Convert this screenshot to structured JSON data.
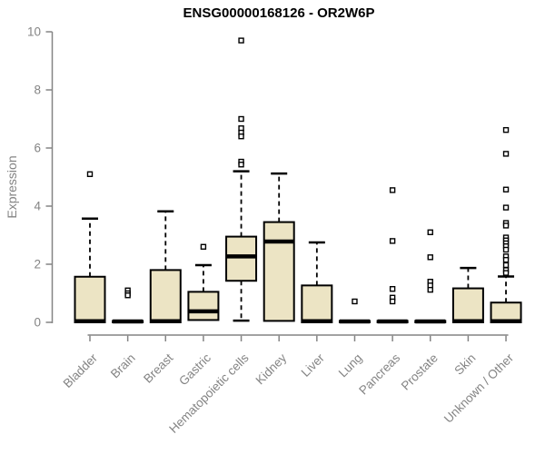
{
  "title": "ENSG00000168126 - OR2W6P",
  "chart_data": {
    "type": "boxplot",
    "title": "ENSG00000168126 - OR2W6P",
    "xlabel": "",
    "ylabel": "Expression",
    "ylim": [
      0,
      10
    ],
    "yticks": [
      0,
      2,
      4,
      6,
      8,
      10
    ],
    "grid": false,
    "legend": false,
    "style": {
      "box_fill": "#ece4c4",
      "box_border": "#000000",
      "median_color": "#000000",
      "whisker_color": "#000000",
      "whisker_style": "dashed",
      "outlier_marker": "open-square",
      "axis_color": "#848484",
      "background": "#ffffff"
    },
    "categories": [
      "Bladder",
      "Brain",
      "Breast",
      "Gastric",
      "Hematopoietic cells",
      "Kidney",
      "Liver",
      "Lung",
      "Pancreas",
      "Prostate",
      "Skin",
      "Unknown / Other"
    ],
    "boxes": [
      {
        "category": "Bladder",
        "whisker_low": 0,
        "q1": 0,
        "median": 0.04,
        "q3": 1.57,
        "whisker_high": 3.57,
        "outliers": [
          5.1
        ]
      },
      {
        "category": "Brain",
        "whisker_low": 0,
        "q1": 0,
        "median": 0.03,
        "q3": 0.05,
        "whisker_high": 0.05,
        "outliers": [
          1.1,
          1.0,
          0.93
        ]
      },
      {
        "category": "Breast",
        "whisker_low": 0,
        "q1": 0,
        "median": 0.04,
        "q3": 1.8,
        "whisker_high": 3.82,
        "outliers": []
      },
      {
        "category": "Gastric",
        "whisker_low": 0.08,
        "q1": 0.08,
        "median": 0.38,
        "q3": 1.05,
        "whisker_high": 1.97,
        "outliers": [
          2.6
        ]
      },
      {
        "category": "Hematopoietic cells",
        "whisker_low": 0.06,
        "q1": 1.43,
        "median": 2.27,
        "q3": 2.95,
        "whisker_high": 5.2,
        "outliers": [
          9.7,
          7.0,
          6.68,
          6.53,
          6.4,
          5.53,
          5.43
        ]
      },
      {
        "category": "Kidney",
        "whisker_low": 0.05,
        "q1": 0.05,
        "median": 2.78,
        "q3": 3.45,
        "whisker_high": 5.12,
        "outliers": []
      },
      {
        "category": "Liver",
        "whisker_low": 0,
        "q1": 0,
        "median": 0.04,
        "q3": 1.27,
        "whisker_high": 2.75,
        "outliers": []
      },
      {
        "category": "Lung",
        "whisker_low": 0,
        "q1": 0,
        "median": 0.03,
        "q3": 0.05,
        "whisker_high": 0.05,
        "outliers": [
          0.72
        ]
      },
      {
        "category": "Pancreas",
        "whisker_low": 0,
        "q1": 0,
        "median": 0.03,
        "q3": 0.05,
        "whisker_high": 0.05,
        "outliers": [
          4.55,
          2.8,
          1.15,
          0.85,
          0.72
        ]
      },
      {
        "category": "Prostate",
        "whisker_low": 0,
        "q1": 0,
        "median": 0.03,
        "q3": 0.05,
        "whisker_high": 0.05,
        "outliers": [
          3.1,
          2.24,
          1.4,
          1.27,
          1.12
        ]
      },
      {
        "category": "Skin",
        "whisker_low": 0,
        "q1": 0,
        "median": 0.04,
        "q3": 1.17,
        "whisker_high": 1.87,
        "outliers": []
      },
      {
        "category": "Unknown / Other",
        "whisker_low": 0,
        "q1": 0,
        "median": 0.04,
        "q3": 0.68,
        "whisker_high": 1.58,
        "outliers": [
          6.62,
          5.8,
          4.57,
          3.95,
          3.42,
          3.33,
          2.92,
          2.82,
          2.72,
          2.62,
          2.5,
          2.27,
          2.15,
          1.97,
          1.8,
          1.7
        ]
      }
    ]
  }
}
